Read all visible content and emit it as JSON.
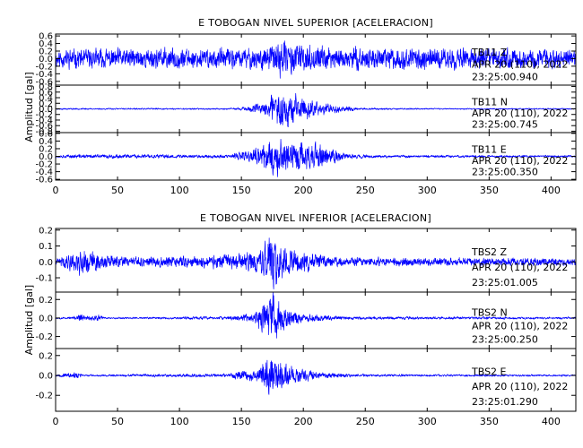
{
  "chart_data": [
    {
      "type": "line",
      "title": "E TOBOGAN NIVEL SUPERIOR [ACELERACION]",
      "ylabel": "Amplitud [gal]",
      "xlim": [
        0,
        420
      ],
      "x_ticks": [
        0,
        50,
        100,
        150,
        200,
        250,
        300,
        350,
        400
      ],
      "series": [
        {
          "name": "TB11   Z",
          "date": "APR 20 (110), 2022",
          "time": "23:25:00.940",
          "ylim": [
            -0.7,
            0.65
          ],
          "y_ticks": [
            -0.6,
            -0.4,
            -0.2,
            0.0,
            0.2,
            0.4,
            0.6
          ],
          "y_tick_labels": [
            "-0.6",
            "-0.4",
            "-0.2",
            "0.0",
            "0.2",
            "0.4",
            "0.6"
          ],
          "noise": 0.2,
          "envelope": [
            [
              0,
              0.28
            ],
            [
              60,
              0.3
            ],
            [
              150,
              0.3
            ],
            [
              170,
              0.36
            ],
            [
              185,
              0.55
            ],
            [
              195,
              0.4
            ],
            [
              230,
              0.32
            ],
            [
              320,
              0.3
            ],
            [
              420,
              0.28
            ]
          ],
          "seed": 11
        },
        {
          "name": "TB11   N",
          "date": "APR 20 (110), 2022",
          "time": "23:25:00.745",
          "ylim": [
            -0.85,
            0.85
          ],
          "y_ticks": [
            -0.8,
            -0.6,
            -0.4,
            -0.2,
            0.0,
            0.2,
            0.4,
            0.6,
            0.8
          ],
          "y_tick_labels": [
            "-0.8",
            "-0.6",
            "-0.4",
            "-0.2",
            "0.0",
            "0.2",
            "0.4",
            "0.6",
            "0.8"
          ],
          "noise": 0.02,
          "envelope": [
            [
              0,
              0.03
            ],
            [
              140,
              0.03
            ],
            [
              155,
              0.08
            ],
            [
              170,
              0.35
            ],
            [
              182,
              0.8
            ],
            [
              195,
              0.6
            ],
            [
              210,
              0.3
            ],
            [
              222,
              0.18
            ],
            [
              235,
              0.12
            ],
            [
              245,
              0.04
            ],
            [
              300,
              0.025
            ],
            [
              420,
              0.025
            ]
          ],
          "seed": 23
        },
        {
          "name": "TB11   E",
          "date": "APR 20 (110), 2022",
          "time": "23:25:00.350",
          "ylim": [
            -0.62,
            0.62
          ],
          "y_ticks": [
            -0.6,
            -0.4,
            -0.2,
            0.0,
            0.2,
            0.4,
            0.6
          ],
          "y_tick_labels": [
            "-0.6",
            "-0.4",
            "-0.2",
            "0.0",
            "0.2",
            "0.4",
            "0.6"
          ],
          "noise": 0.02,
          "envelope": [
            [
              0,
              0.04
            ],
            [
              20,
              0.06
            ],
            [
              140,
              0.05
            ],
            [
              155,
              0.18
            ],
            [
              170,
              0.4
            ],
            [
              180,
              0.58
            ],
            [
              195,
              0.45
            ],
            [
              210,
              0.38
            ],
            [
              222,
              0.25
            ],
            [
              235,
              0.08
            ],
            [
              260,
              0.04
            ],
            [
              420,
              0.03
            ]
          ],
          "seed": 37
        }
      ]
    },
    {
      "type": "line",
      "title": "E TOBOGAN NIVEL INFERIOR [ACELERACION]",
      "ylabel": "Amplitud [gal]",
      "xlim": [
        0,
        420
      ],
      "x_ticks": [
        0,
        50,
        100,
        150,
        200,
        250,
        300,
        350,
        400
      ],
      "series": [
        {
          "name": "TBS2   Z",
          "date": "APR 20 (110), 2022",
          "time": "23:25:01.005",
          "ylim": [
            -0.19,
            0.21
          ],
          "y_ticks": [
            -0.1,
            0.0,
            0.1,
            0.2
          ],
          "y_tick_labels": [
            "-0.1",
            "0.0",
            "0.1",
            "0.2"
          ],
          "noise": 0.01,
          "envelope": [
            [
              0,
              0.02
            ],
            [
              12,
              0.06
            ],
            [
              22,
              0.1
            ],
            [
              35,
              0.06
            ],
            [
              60,
              0.03
            ],
            [
              145,
              0.05
            ],
            [
              165,
              0.08
            ],
            [
              172,
              0.19
            ],
            [
              180,
              0.15
            ],
            [
              195,
              0.08
            ],
            [
              230,
              0.03
            ],
            [
              420,
              0.025
            ]
          ],
          "seed": 41
        },
        {
          "name": "TBS2   N",
          "date": "APR 20 (110), 2022",
          "time": "23:25:00.250",
          "ylim": [
            -0.33,
            0.28
          ],
          "y_ticks": [
            -0.2,
            0.0,
            0.2
          ],
          "y_tick_labels": [
            "-0.2",
            "0.0",
            "0.2"
          ],
          "noise": 0.01,
          "envelope": [
            [
              0,
              0.01
            ],
            [
              18,
              0.02
            ],
            [
              20,
              0.07
            ],
            [
              24,
              0.02
            ],
            [
              35,
              0.04
            ],
            [
              40,
              0.01
            ],
            [
              140,
              0.02
            ],
            [
              160,
              0.06
            ],
            [
              170,
              0.25
            ],
            [
              175,
              0.3
            ],
            [
              185,
              0.12
            ],
            [
              200,
              0.05
            ],
            [
              230,
              0.02
            ],
            [
              420,
              0.012
            ]
          ],
          "seed": 53
        },
        {
          "name": "TBS2   E",
          "date": "APR 20 (110), 2022",
          "time": "23:25:01.290",
          "ylim": [
            -0.36,
            0.27
          ],
          "y_ticks": [
            -0.2,
            0.0,
            0.2
          ],
          "y_tick_labels": [
            "-0.2",
            "0.0",
            "0.2"
          ],
          "noise": 0.01,
          "envelope": [
            [
              0,
              0.01
            ],
            [
              18,
              0.04
            ],
            [
              22,
              0.01
            ],
            [
              140,
              0.02
            ],
            [
              150,
              0.06
            ],
            [
              165,
              0.08
            ],
            [
              172,
              0.25
            ],
            [
              178,
              0.2
            ],
            [
              190,
              0.1
            ],
            [
              210,
              0.04
            ],
            [
              240,
              0.015
            ],
            [
              420,
              0.01
            ]
          ],
          "seed": 67
        }
      ]
    }
  ],
  "colors": {
    "trace": "#0000ff",
    "axes": "#000000"
  }
}
